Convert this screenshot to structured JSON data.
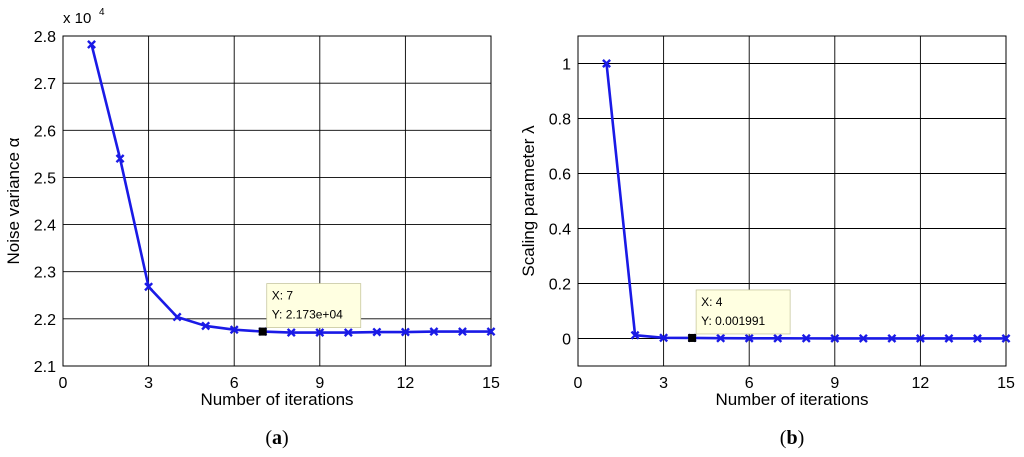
{
  "chart_data": [
    {
      "type": "line",
      "caption": "(a)",
      "caption_letter": "a",
      "xlabel": "Number of iterations",
      "ylabel": "Noise variance α",
      "y_multiplier_base": "x 10",
      "y_multiplier_exp": "4",
      "xlim": [
        0,
        15
      ],
      "ylim": [
        2.1,
        2.8
      ],
      "xticks": [
        0,
        3,
        6,
        9,
        12,
        15
      ],
      "yticks": [
        2.1,
        2.2,
        2.3,
        2.4,
        2.5,
        2.6,
        2.7,
        2.8
      ],
      "ytick_labels": [
        "2.1",
        "2.2",
        "2.3",
        "2.4",
        "2.5",
        "2.6",
        "2.7",
        "2.8"
      ],
      "grid": true,
      "series": [
        {
          "color": "#1a1ae6",
          "marker": "x",
          "x": [
            1,
            2,
            3,
            4,
            5,
            6,
            7,
            8,
            9,
            10,
            11,
            12,
            13,
            14,
            15
          ],
          "y": [
            2.782,
            2.54,
            2.268,
            2.204,
            2.185,
            2.177,
            2.173,
            2.171,
            2.171,
            2.171,
            2.172,
            2.172,
            2.173,
            2.173,
            2.173
          ]
        }
      ],
      "datatip": {
        "x": 7,
        "y": 2.173,
        "line1": "X: 7",
        "line2": "Y: 2.173e+04"
      }
    },
    {
      "type": "line",
      "caption": "(b)",
      "caption_letter": "b",
      "xlabel": "Number of iterations",
      "ylabel": "Scaling parameter λ",
      "xlim": [
        0,
        15
      ],
      "ylim": [
        -0.1,
        1.1
      ],
      "xticks": [
        0,
        3,
        6,
        9,
        12,
        15
      ],
      "yticks": [
        0,
        0.2,
        0.4,
        0.6,
        0.8,
        1
      ],
      "ytick_labels": [
        "0",
        "0.2",
        "0.4",
        "0.6",
        "0.8",
        "1"
      ],
      "grid": true,
      "series": [
        {
          "color": "#1a1ae6",
          "marker": "x",
          "x": [
            1,
            2,
            3,
            4,
            5,
            6,
            7,
            8,
            9,
            10,
            11,
            12,
            13,
            14,
            15
          ],
          "y": [
            1,
            0.012,
            0.0025,
            0.001991,
            0.001,
            0.0008,
            0.0006,
            0.0005,
            0.0004,
            0.0004,
            0.0003,
            0.0003,
            0.0003,
            0.0002,
            0.0002
          ]
        }
      ],
      "datatip": {
        "x": 4,
        "y": 0.001991,
        "line1": "X: 4",
        "line2": "Y: 0.001991"
      }
    }
  ]
}
